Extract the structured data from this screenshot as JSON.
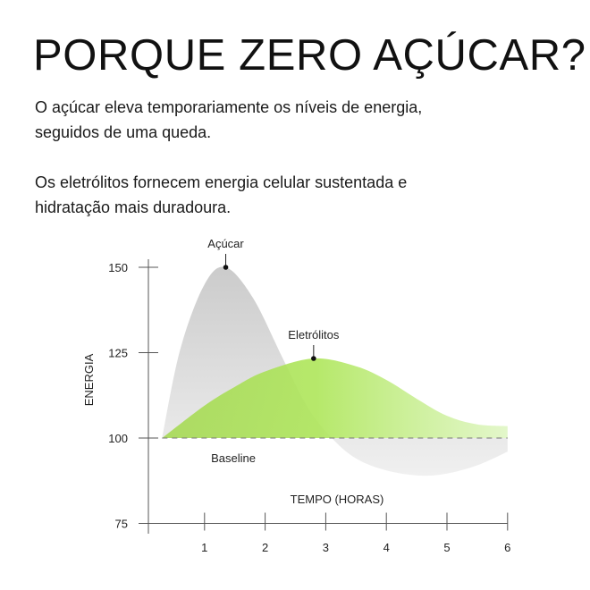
{
  "header": {
    "title": "PORQUE ZERO AÇÚCAR?",
    "paragraph_1_line_1": "O açúcar eleva temporariamente os níveis de energia,",
    "paragraph_1_line_2": "seguidos de uma queda.",
    "paragraph_2_line_1": "Os eletrólitos fornecem energia celular sustentada e",
    "paragraph_2_line_2": "hidratação mais duradoura."
  },
  "chart_data": {
    "type": "area",
    "xlabel": "TEMPO (HORAS)",
    "ylabel": "ENERGIA",
    "xlim": [
      0,
      6
    ],
    "ylim": [
      75,
      150
    ],
    "x_ticks": [
      "1",
      "2",
      "3",
      "4",
      "5",
      "6"
    ],
    "y_ticks": [
      "150",
      "125",
      "100",
      "75"
    ],
    "baseline": {
      "value": 100,
      "label": "Baseline",
      "style": "dashed"
    },
    "series": [
      {
        "name": "Açúcar",
        "color": "#cfcfcf",
        "peak": [
          1.35,
          150
        ],
        "points": [
          [
            0.3,
            100
          ],
          [
            0.6,
            126
          ],
          [
            1.0,
            145
          ],
          [
            1.35,
            150
          ],
          [
            1.8,
            141
          ],
          [
            2.3,
            123
          ],
          [
            2.7,
            109
          ],
          [
            3.1,
            100
          ],
          [
            3.5,
            94
          ],
          [
            4.0,
            90.5
          ],
          [
            4.55,
            89
          ],
          [
            5.0,
            89.6
          ],
          [
            5.5,
            92
          ],
          [
            6.0,
            96
          ]
        ]
      },
      {
        "name": "Eletrólitos",
        "color": "#a8e04c",
        "peak": [
          2.8,
          123.3
        ],
        "points": [
          [
            0.3,
            100
          ],
          [
            1.0,
            109.5
          ],
          [
            1.5,
            115
          ],
          [
            2.0,
            119.5
          ],
          [
            2.8,
            123.3
          ],
          [
            3.5,
            121
          ],
          [
            4.0,
            117
          ],
          [
            4.5,
            111.5
          ],
          [
            5.0,
            106.5
          ],
          [
            5.5,
            104
          ],
          [
            6.0,
            103.5
          ]
        ]
      }
    ]
  }
}
